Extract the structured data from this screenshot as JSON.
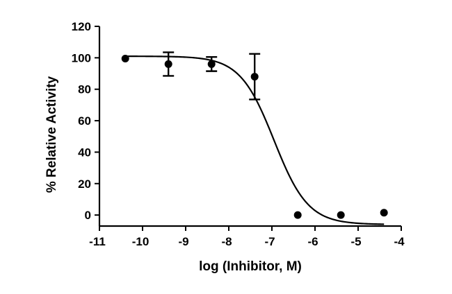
{
  "chart_data": {
    "type": "scatter",
    "title": "",
    "xlabel": "log (Inhibitor, M)",
    "ylabel": "% Relative  Activity",
    "xlim": [
      -11,
      -4
    ],
    "ylim": [
      -7,
      120
    ],
    "xticks": [
      -11,
      -10,
      -9,
      -8,
      -7,
      -6,
      -5,
      -4
    ],
    "yticks": [
      0,
      20,
      40,
      60,
      80,
      100,
      120
    ],
    "xtick_labels": [
      "-11",
      "-10",
      "-9",
      "-8",
      "-7",
      "-6",
      "-5",
      "-4"
    ],
    "ytick_labels": [
      "0",
      "20",
      "40",
      "60",
      "80",
      "100",
      "120"
    ],
    "grid": false,
    "legend": "none",
    "series": [
      {
        "points": [
          {
            "x": -10.4,
            "y": 99.5,
            "err": 0
          },
          {
            "x": -9.4,
            "y": 96,
            "err": 7.5
          },
          {
            "x": -8.4,
            "y": 96,
            "err": 4.5
          },
          {
            "x": -7.4,
            "y": 88,
            "err": 14.5
          },
          {
            "x": -6.4,
            "y": 0,
            "err": 0
          },
          {
            "x": -5.4,
            "y": 0,
            "err": 0
          },
          {
            "x": -4.4,
            "y": 1.5,
            "err": 0
          }
        ]
      }
    ],
    "fit_curve": {
      "model": "sigmoidal dose-response",
      "top": 101,
      "bottom": -6,
      "log_ic50": -6.95,
      "hill_slope": -1.1,
      "x_range": [
        -10.4,
        -4.4
      ]
    },
    "colors": {
      "marks": "#000000",
      "axes": "#000000"
    }
  }
}
